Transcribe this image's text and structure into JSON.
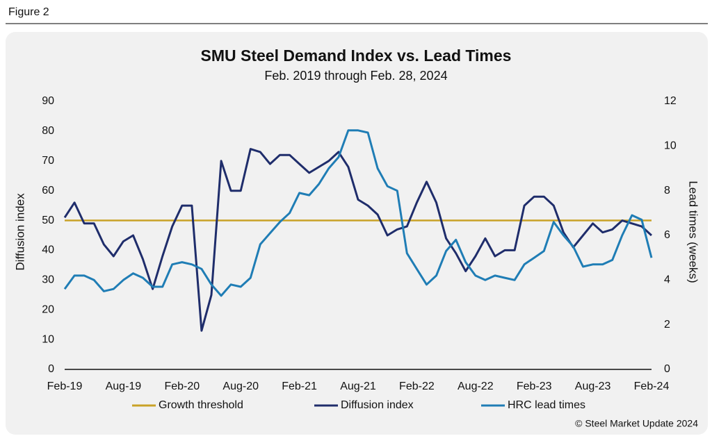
{
  "figure_label": "Figure 2",
  "chart_data": {
    "type": "line",
    "title": "SMU Steel Demand Index vs. Lead Times",
    "subtitle": "Feb. 2019 through Feb. 28, 2024",
    "y_label": "Diffusion index",
    "y2_label": "Lead times (weeks)",
    "source": "© Steel Market Update 2024",
    "categories": [
      "Feb-19",
      null,
      null,
      null,
      null,
      null,
      "Aug-19",
      null,
      null,
      null,
      null,
      null,
      "Feb-20",
      null,
      null,
      null,
      null,
      null,
      "Aug-20",
      null,
      null,
      null,
      null,
      null,
      "Feb-21",
      null,
      null,
      null,
      null,
      null,
      "Aug-21",
      null,
      null,
      null,
      null,
      null,
      "Feb-22",
      null,
      null,
      null,
      null,
      null,
      "Aug-22",
      null,
      null,
      null,
      null,
      null,
      "Feb-23",
      null,
      null,
      null,
      null,
      null,
      "Aug-23",
      null,
      null,
      null,
      null,
      null,
      "Feb-24"
    ],
    "ylim": [
      0,
      90
    ],
    "yticks": [
      0,
      10,
      20,
      30,
      40,
      50,
      60,
      70,
      80,
      90
    ],
    "y2lim": [
      0,
      12
    ],
    "y2ticks": [
      0,
      2,
      4,
      6,
      8,
      10,
      12
    ],
    "threshold": {
      "name": "Growth threshold",
      "value": 50,
      "color": "#c9a227"
    },
    "series": [
      {
        "name": "Diffusion index",
        "color": "#1f2d6b",
        "values": [
          51,
          56,
          49,
          49,
          42,
          38,
          43,
          45,
          37,
          27,
          38,
          48,
          55,
          55,
          13,
          25,
          70,
          60,
          60,
          74,
          73,
          69,
          72,
          72,
          69,
          66,
          68,
          70,
          73,
          68,
          57,
          55,
          52,
          45,
          47,
          48,
          56,
          63,
          56,
          44,
          39,
          33,
          38,
          44,
          38,
          40,
          40,
          55,
          58,
          58,
          55,
          46,
          41,
          45,
          49,
          46,
          47,
          50,
          49,
          48,
          45
        ]
      },
      {
        "name": "HRC lead times",
        "color": "#1f7db5",
        "axis": "y2",
        "values": [
          3.6,
          4.2,
          4.2,
          4.0,
          3.5,
          3.6,
          4.0,
          4.3,
          4.1,
          3.7,
          3.7,
          4.7,
          4.8,
          4.7,
          4.5,
          3.8,
          3.3,
          3.8,
          3.7,
          4.1,
          5.6,
          6.1,
          6.6,
          7.0,
          7.9,
          7.8,
          8.3,
          9.0,
          9.5,
          10.7,
          10.7,
          10.6,
          9.0,
          8.2,
          8.0,
          5.2,
          4.5,
          3.8,
          4.2,
          5.3,
          5.8,
          4.8,
          4.2,
          4.0,
          4.2,
          4.1,
          4.0,
          4.7,
          5.0,
          5.3,
          6.6,
          6.0,
          5.5,
          4.6,
          4.7,
          4.7,
          4.9,
          6.0,
          6.9,
          6.7,
          5.0
        ]
      }
    ]
  }
}
